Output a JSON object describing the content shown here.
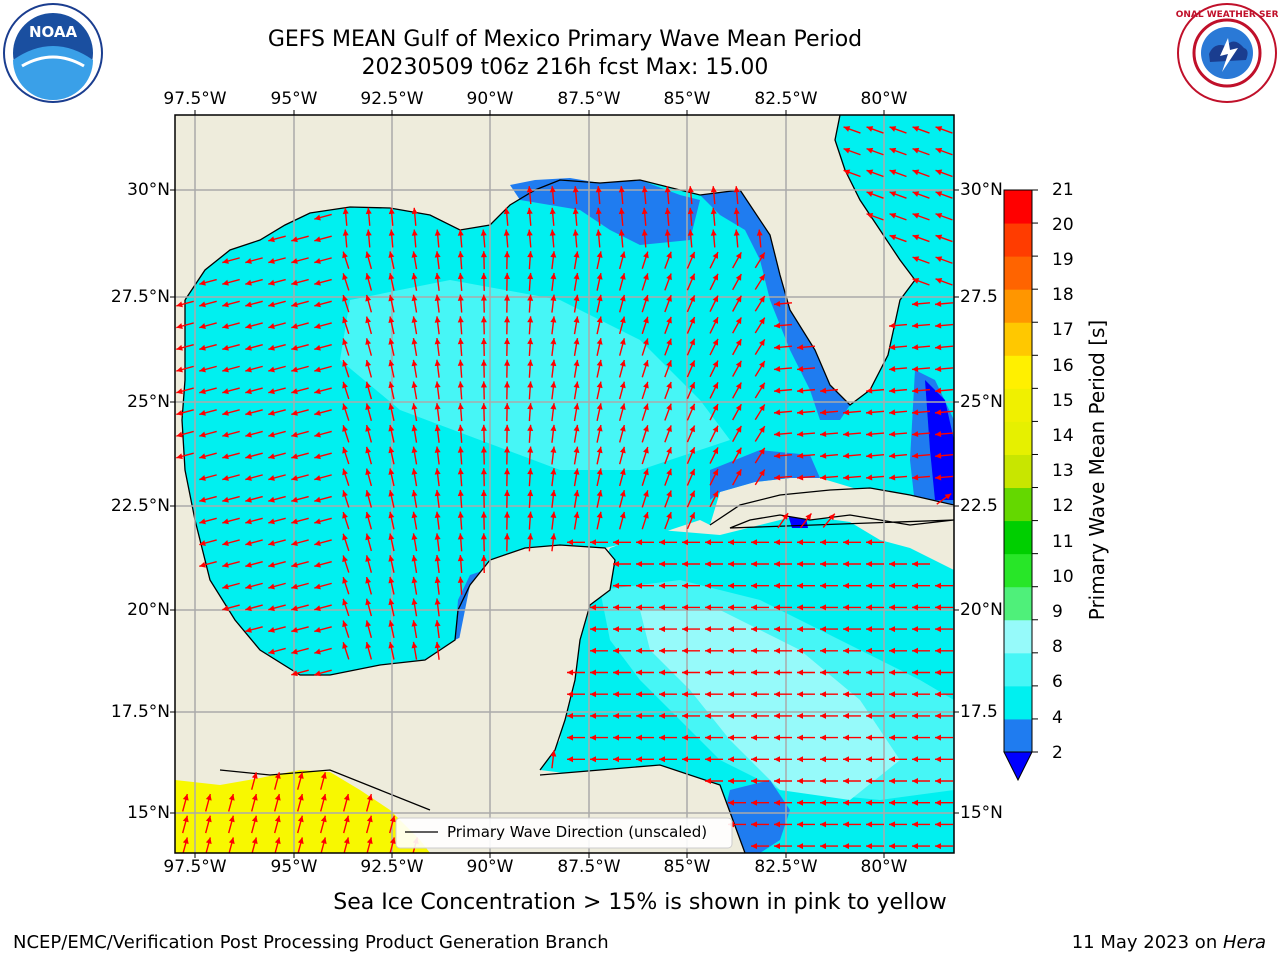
{
  "title": {
    "line1": "GEFS MEAN Gulf of Mexico Primary Wave Mean Period",
    "line2": "20230509 t06z 216h fcst   Max: 15.00"
  },
  "logos": {
    "left": {
      "name": "noaa-logo",
      "text": "NOAA"
    },
    "right": {
      "name": "nws-logo",
      "text": "NATIONAL WEATHER SERVICE"
    }
  },
  "axes": {
    "lon_labels": [
      "97.5°W",
      "95°W",
      "92.5°W",
      "90°W",
      "87.5°W",
      "85°W",
      "82.5°W",
      "80°W"
    ],
    "lat_labels_left": [
      "30°N",
      "27.5°N",
      "25°N",
      "22.5°N",
      "20°N",
      "17.5°N",
      "15°N"
    ],
    "lat_labels_right": [
      "30°N",
      "27.5",
      "25°N",
      "22.5",
      "20°N",
      "17.5",
      "15°N"
    ]
  },
  "legend": {
    "label": "Primary Wave Direction (unscaled)"
  },
  "colorbar": {
    "label": "Primary Wave Mean Period [s]",
    "tick_labels": [
      "21",
      "20",
      "19",
      "18",
      "17",
      "16",
      "15",
      "14",
      "13",
      "12",
      "11",
      "10",
      "9",
      "8",
      "6",
      "4",
      "2"
    ],
    "colors_bottom_to_top": [
      "#1f7cf0",
      "#00f0f0",
      "#46f6f6",
      "#96fafa",
      "#4ff07a",
      "#28e628",
      "#00cf00",
      "#64d800",
      "#c8e600",
      "#e6f000",
      "#f0f000",
      "#fff000",
      "#ffc800",
      "#ff9600",
      "#ff6400",
      "#ff3c00",
      "#ff0000"
    ],
    "underflow_color": "#0000ff"
  },
  "map_colors": {
    "land": "#eeecdc",
    "period_6": "#00f0f0",
    "period_8": "#46f6f6",
    "period_9": "#96fafa",
    "period_4": "#1f7cf0",
    "period_2": "#0000ff",
    "ice": "#f8f800",
    "arrow": "#ff0000",
    "grid": "#aaaaaa"
  },
  "caption": "Sea Ice Concentration > 15% is shown in pink to yellow",
  "footer": {
    "left": "NCEP/EMC/Verification Post Processing Product Generation Branch",
    "right_date": "11 May 2023 on ",
    "right_host": "Hera"
  }
}
